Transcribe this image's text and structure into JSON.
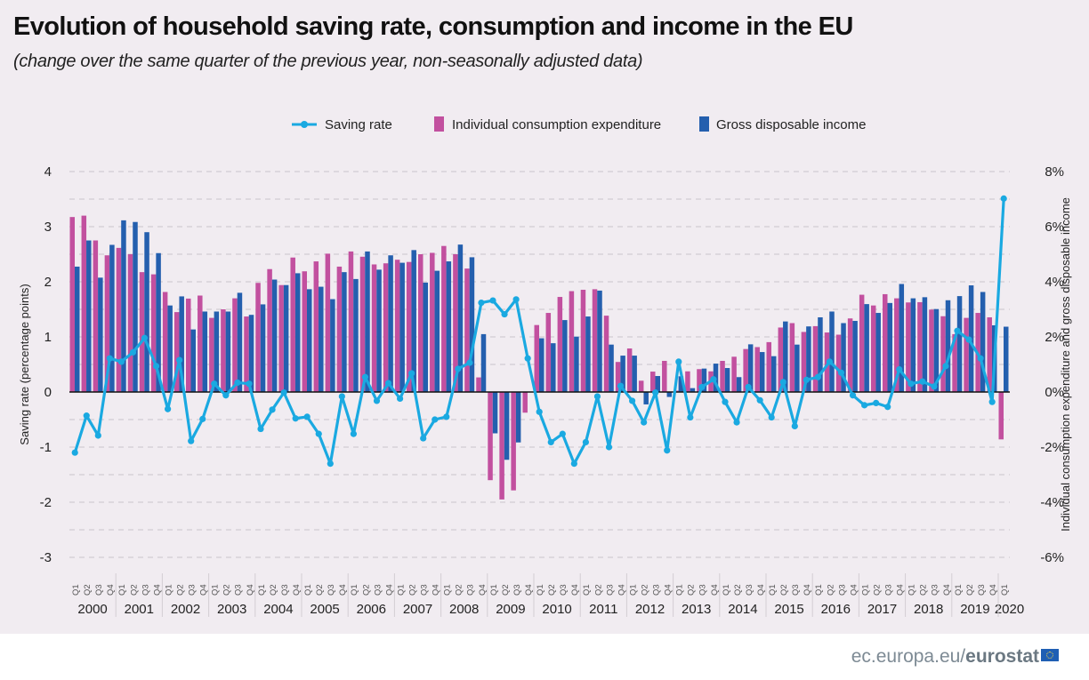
{
  "title": "Evolution of household saving rate, consumption and income in the EU",
  "subtitle": "(change over the same quarter of the previous year, non-seasonally adjusted data)",
  "footer": {
    "site": "ec.europa.eu/",
    "brand": "eurostat"
  },
  "colors": {
    "saving": "#1aa9e1",
    "consumption": "#c2509f",
    "income": "#245fae",
    "background": "#f1ecf1"
  },
  "chart_data": {
    "type": "bar+line",
    "legend_position": "top",
    "grid": true,
    "left_axis": {
      "label": "Saving rate (percentage points)",
      "ylim": [
        -3,
        4
      ],
      "ticks": [
        "4",
        "3",
        "2",
        "1",
        "0",
        "-1",
        "-2",
        "-3"
      ]
    },
    "right_axis": {
      "label": "Individual consumption expenditure and gross disposable income",
      "ylim": [
        -6,
        8
      ],
      "ticks": [
        "8%",
        "6%",
        "4%",
        "2%",
        "0%",
        "-2%",
        "-4%",
        "-6%"
      ]
    },
    "quarter_labels": [
      "Q1",
      "Q2",
      "Q3",
      "Q4"
    ],
    "years": [
      "2000",
      "2001",
      "2002",
      "2003",
      "2004",
      "2005",
      "2006",
      "2007",
      "2008",
      "2009",
      "2010",
      "2011",
      "2012",
      "2013",
      "2014",
      "2015",
      "2016",
      "2017",
      "2018",
      "2019",
      "2020"
    ],
    "series": [
      {
        "name": "Saving rate",
        "type": "line",
        "axis": "left",
        "values": [
          -1.1,
          -0.43,
          -0.79,
          0.61,
          0.55,
          0.72,
          0.98,
          0.47,
          -0.31,
          0.58,
          -0.89,
          -0.49,
          0.15,
          -0.06,
          0.17,
          0.15,
          -0.67,
          -0.32,
          -0.01,
          -0.48,
          -0.45,
          -0.76,
          -1.3,
          -0.08,
          -0.76,
          0.27,
          -0.16,
          0.16,
          -0.12,
          0.34,
          -0.84,
          -0.5,
          -0.45,
          0.42,
          0.53,
          1.62,
          1.66,
          1.41,
          1.68,
          0.61,
          -0.36,
          -0.91,
          -0.76,
          -1.3,
          -0.91,
          -0.08,
          -1.0,
          0.11,
          -0.16,
          -0.55,
          -0.01,
          -1.06,
          0.55,
          -0.46,
          0.09,
          0.23,
          -0.18,
          -0.55,
          0.09,
          -0.15,
          -0.46,
          0.18,
          -0.62,
          0.22,
          0.27,
          0.55,
          0.35,
          -0.06,
          -0.24,
          -0.2,
          -0.27,
          0.41,
          0.15,
          0.19,
          0.1,
          0.47,
          1.11,
          0.95,
          0.61,
          -0.18,
          3.51
        ]
      },
      {
        "name": "Individual consumption expenditure",
        "type": "bar",
        "axis": "right",
        "values": [
          6.35,
          6.4,
          5.5,
          4.96,
          5.23,
          5.0,
          4.35,
          4.27,
          3.63,
          2.9,
          3.39,
          3.5,
          2.69,
          3.0,
          3.4,
          2.74,
          3.96,
          4.46,
          3.88,
          4.88,
          4.38,
          4.74,
          5.02,
          4.55,
          5.1,
          4.91,
          4.63,
          4.67,
          4.8,
          4.72,
          5.0,
          5.05,
          5.3,
          5.0,
          4.48,
          0.53,
          -3.2,
          -3.9,
          -3.57,
          -0.75,
          2.43,
          2.87,
          3.45,
          3.66,
          3.71,
          3.73,
          2.77,
          1.09,
          1.58,
          0.41,
          0.74,
          1.13,
          0.05,
          0.75,
          0.83,
          0.75,
          1.13,
          1.28,
          1.56,
          1.63,
          1.81,
          2.34,
          2.5,
          2.18,
          2.39,
          2.16,
          2.08,
          2.67,
          3.53,
          3.14,
          3.55,
          3.4,
          3.25,
          3.26,
          2.99,
          2.75,
          2.1,
          2.69,
          2.87,
          2.71,
          -1.72
        ]
      },
      {
        "name": "Gross disposable income",
        "type": "bar",
        "axis": "right",
        "values": [
          4.55,
          5.5,
          4.15,
          5.34,
          6.23,
          6.17,
          5.8,
          5.04,
          3.14,
          3.47,
          2.27,
          2.92,
          2.92,
          2.92,
          3.6,
          2.8,
          3.18,
          4.08,
          3.88,
          4.31,
          3.73,
          3.82,
          3.37,
          4.35,
          4.1,
          5.1,
          4.44,
          4.96,
          4.69,
          5.15,
          3.97,
          4.4,
          4.74,
          5.35,
          4.89,
          2.1,
          -1.5,
          -2.46,
          -1.83,
          0.0,
          1.95,
          1.77,
          2.61,
          2.01,
          2.74,
          3.68,
          1.72,
          1.32,
          1.32,
          -0.45,
          0.58,
          -0.18,
          0.57,
          0.14,
          0.85,
          1.03,
          0.87,
          0.54,
          1.73,
          1.45,
          1.3,
          2.56,
          1.72,
          2.38,
          2.71,
          2.92,
          2.5,
          2.58,
          3.19,
          2.87,
          3.23,
          3.92,
          3.4,
          3.44,
          3.01,
          3.33,
          3.48,
          3.87,
          3.63,
          2.42,
          2.37
        ]
      }
    ]
  }
}
